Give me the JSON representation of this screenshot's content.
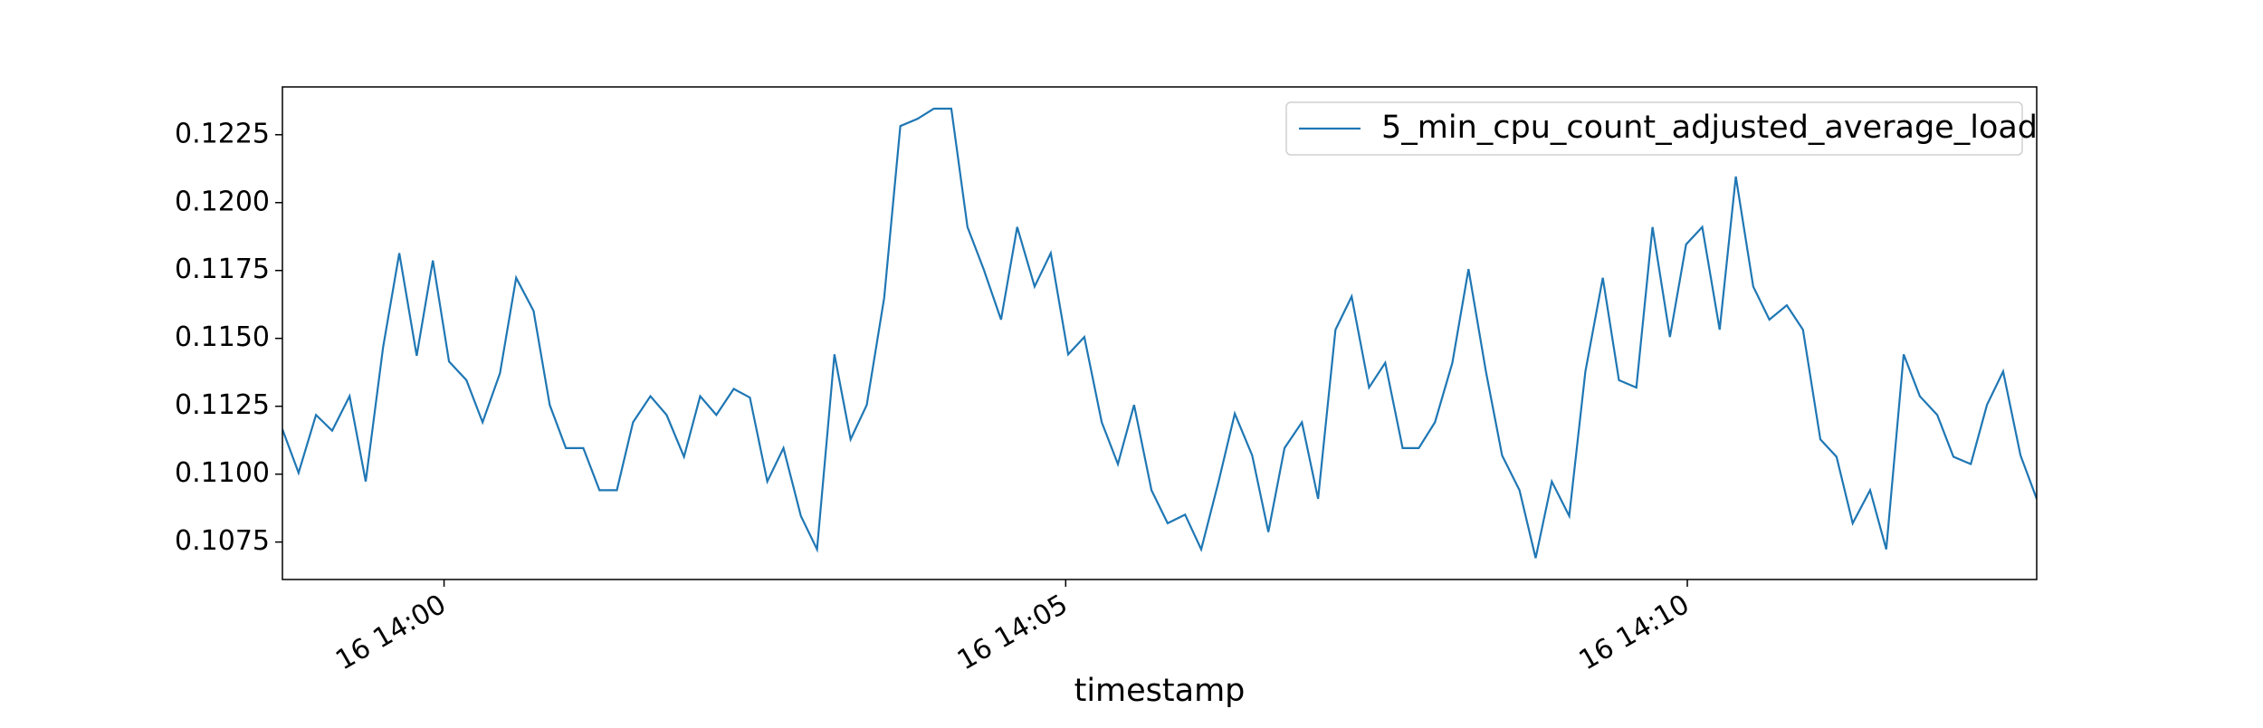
{
  "chart_data": {
    "type": "line",
    "x_label": "timestamp",
    "x": [
      -1.3,
      -1.17,
      -1.03,
      -0.9,
      -0.76,
      -0.63,
      -0.49,
      -0.36,
      -0.22,
      -0.09,
      0.04,
      0.18,
      0.31,
      0.45,
      0.58,
      0.72,
      0.85,
      0.98,
      1.12,
      1.25,
      1.39,
      1.52,
      1.66,
      1.79,
      1.93,
      2.06,
      2.19,
      2.33,
      2.46,
      2.6,
      2.73,
      2.87,
      3.0,
      3.14,
      3.27,
      3.4,
      3.54,
      3.67,
      3.81,
      3.94,
      4.08,
      4.21,
      4.34,
      4.48,
      4.61,
      4.75,
      4.88,
      5.02,
      5.15,
      5.29,
      5.42,
      5.55,
      5.69,
      5.82,
      5.96,
      6.09,
      6.23,
      6.36,
      6.5,
      6.63,
      6.76,
      6.9,
      7.03,
      7.17,
      7.3,
      7.44,
      7.57,
      7.71,
      7.84,
      7.97,
      8.11,
      8.24,
      8.38,
      8.51,
      8.65,
      8.78,
      8.91,
      9.05,
      9.18,
      9.32,
      9.45,
      9.59,
      9.72,
      9.86,
      9.99,
      10.12,
      10.26,
      10.39,
      10.53,
      10.66,
      10.8,
      10.93,
      11.07,
      11.2,
      11.33,
      11.47,
      11.6,
      11.74,
      11.87,
      12.01,
      12.14,
      12.28,
      12.41,
      12.54,
      12.68,
      12.81
    ],
    "series": [
      {
        "name": "5_min_cpu_count_adjusted_average_load",
        "color": "#1f77b4",
        "values": [
          0.11165,
          0.11005,
          0.11218,
          0.1116,
          0.11287,
          0.10973,
          0.11468,
          0.11814,
          0.11436,
          0.11787,
          0.11415,
          0.11346,
          0.11191,
          0.11372,
          0.11723,
          0.11601,
          0.11255,
          0.11096,
          0.11096,
          0.10941,
          0.10941,
          0.11191,
          0.11287,
          0.11218,
          0.11064,
          0.11287,
          0.11218,
          0.11314,
          0.11282,
          0.10973,
          0.11096,
          0.10846,
          0.10723,
          0.11441,
          0.11128,
          0.11255,
          0.11649,
          0.12282,
          0.12309,
          0.12346,
          0.12346,
          0.1191,
          0.11755,
          0.11569,
          0.1191,
          0.11691,
          0.11814,
          0.11441,
          0.11505,
          0.11191,
          0.11037,
          0.11255,
          0.10941,
          0.10819,
          0.10851,
          0.10723,
          0.10973,
          0.11223,
          0.11069,
          0.10787,
          0.11096,
          0.11191,
          0.10909,
          0.11532,
          0.11654,
          0.11319,
          0.1141,
          0.11096,
          0.11096,
          0.11191,
          0.1141,
          0.11755,
          0.11378,
          0.11069,
          0.10941,
          0.10691,
          0.10973,
          0.10846,
          0.11378,
          0.11723,
          0.11346,
          0.11319,
          0.1191,
          0.11505,
          0.11846,
          0.1191,
          0.11532,
          0.12096,
          0.11691,
          0.11569,
          0.11622,
          0.11532,
          0.11128,
          0.11064,
          0.10819,
          0.10941,
          0.10723,
          0.11441,
          0.11287,
          0.11218,
          0.11064,
          0.11037,
          0.11255,
          0.11378,
          0.11069,
          0.10909
        ]
      }
    ],
    "xlim": [
      -1.3,
      12.81
    ],
    "xticks": [
      {
        "value": 0,
        "label": "16 14:00"
      },
      {
        "value": 5,
        "label": "16 14:05"
      },
      {
        "value": 10,
        "label": "16 14:10"
      }
    ],
    "ylim": [
      0.10612,
      0.12426
    ],
    "yticks": [
      0.1075,
      {
        "value": 0.11,
        "label": "0.1100"
      },
      0.1125,
      {
        "value": 0.115,
        "label": "0.1150"
      },
      0.1175,
      {
        "value": 0.12,
        "label": "0.1200"
      },
      0.1225
    ],
    "legend": "upper right",
    "grid": false
  }
}
